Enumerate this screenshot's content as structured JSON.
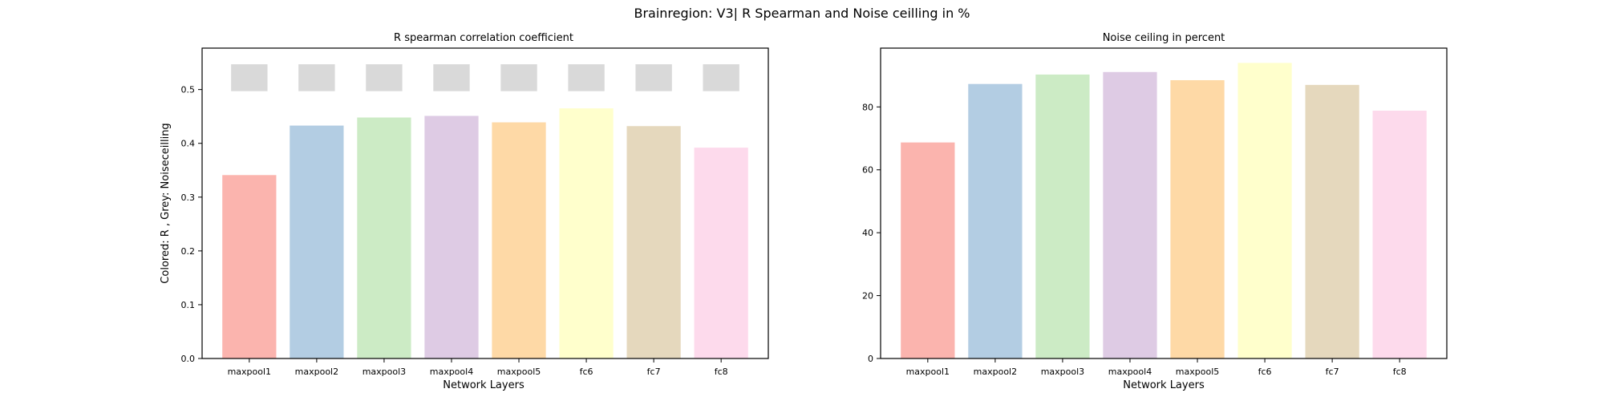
{
  "figure_title": "Brainregion: V3| R Spearman and Noise ceilling in %",
  "chart_data": [
    {
      "type": "bar",
      "title": "R spearman correlation coefficient",
      "xlabel": "Network Layers",
      "ylabel": "Colored: R , Grey: Noiseceilling",
      "categories": [
        "maxpool1",
        "maxpool2",
        "maxpool3",
        "maxpool4",
        "maxpool5",
        "fc6",
        "fc7",
        "fc8"
      ],
      "series": [
        {
          "values": [
            0.341,
            0.433,
            0.448,
            0.451,
            0.439,
            0.465,
            0.432,
            0.392
          ]
        },
        {
          "values": [
            0.522,
            0.522,
            0.522,
            0.522,
            0.522,
            0.522,
            0.522,
            0.522
          ]
        }
      ],
      "noise_band": 0.05,
      "colors": [
        "#fbb4ae",
        "#b3cde3",
        "#ccebc5",
        "#decbe4",
        "#fed9a6",
        "#ffffcc",
        "#e5d8bd",
        "#fddaec"
      ],
      "noise_color": "#d9d9d9",
      "ylim": [
        0,
        0.577
      ],
      "yticks": [
        "0.0",
        "0.1",
        "0.2",
        "0.3",
        "0.4",
        "0.5"
      ],
      "grid": false
    },
    {
      "type": "bar",
      "title": "Noise ceiling in percent",
      "xlabel": "Network Layers",
      "ylabel": "",
      "categories": [
        "maxpool1",
        "maxpool2",
        "maxpool3",
        "maxpool4",
        "maxpool5",
        "fc6",
        "fc7",
        "fc8"
      ],
      "values": [
        68.7,
        87.3,
        90.3,
        91.1,
        88.5,
        94.0,
        87.0,
        78.8
      ],
      "colors": [
        "#fbb4ae",
        "#b3cde3",
        "#ccebc5",
        "#decbe4",
        "#fed9a6",
        "#ffffcc",
        "#e5d8bd",
        "#fddaec"
      ],
      "ylim": [
        0,
        98.7
      ],
      "yticks": [
        "0",
        "20",
        "40",
        "60",
        "80"
      ],
      "grid": false
    }
  ]
}
